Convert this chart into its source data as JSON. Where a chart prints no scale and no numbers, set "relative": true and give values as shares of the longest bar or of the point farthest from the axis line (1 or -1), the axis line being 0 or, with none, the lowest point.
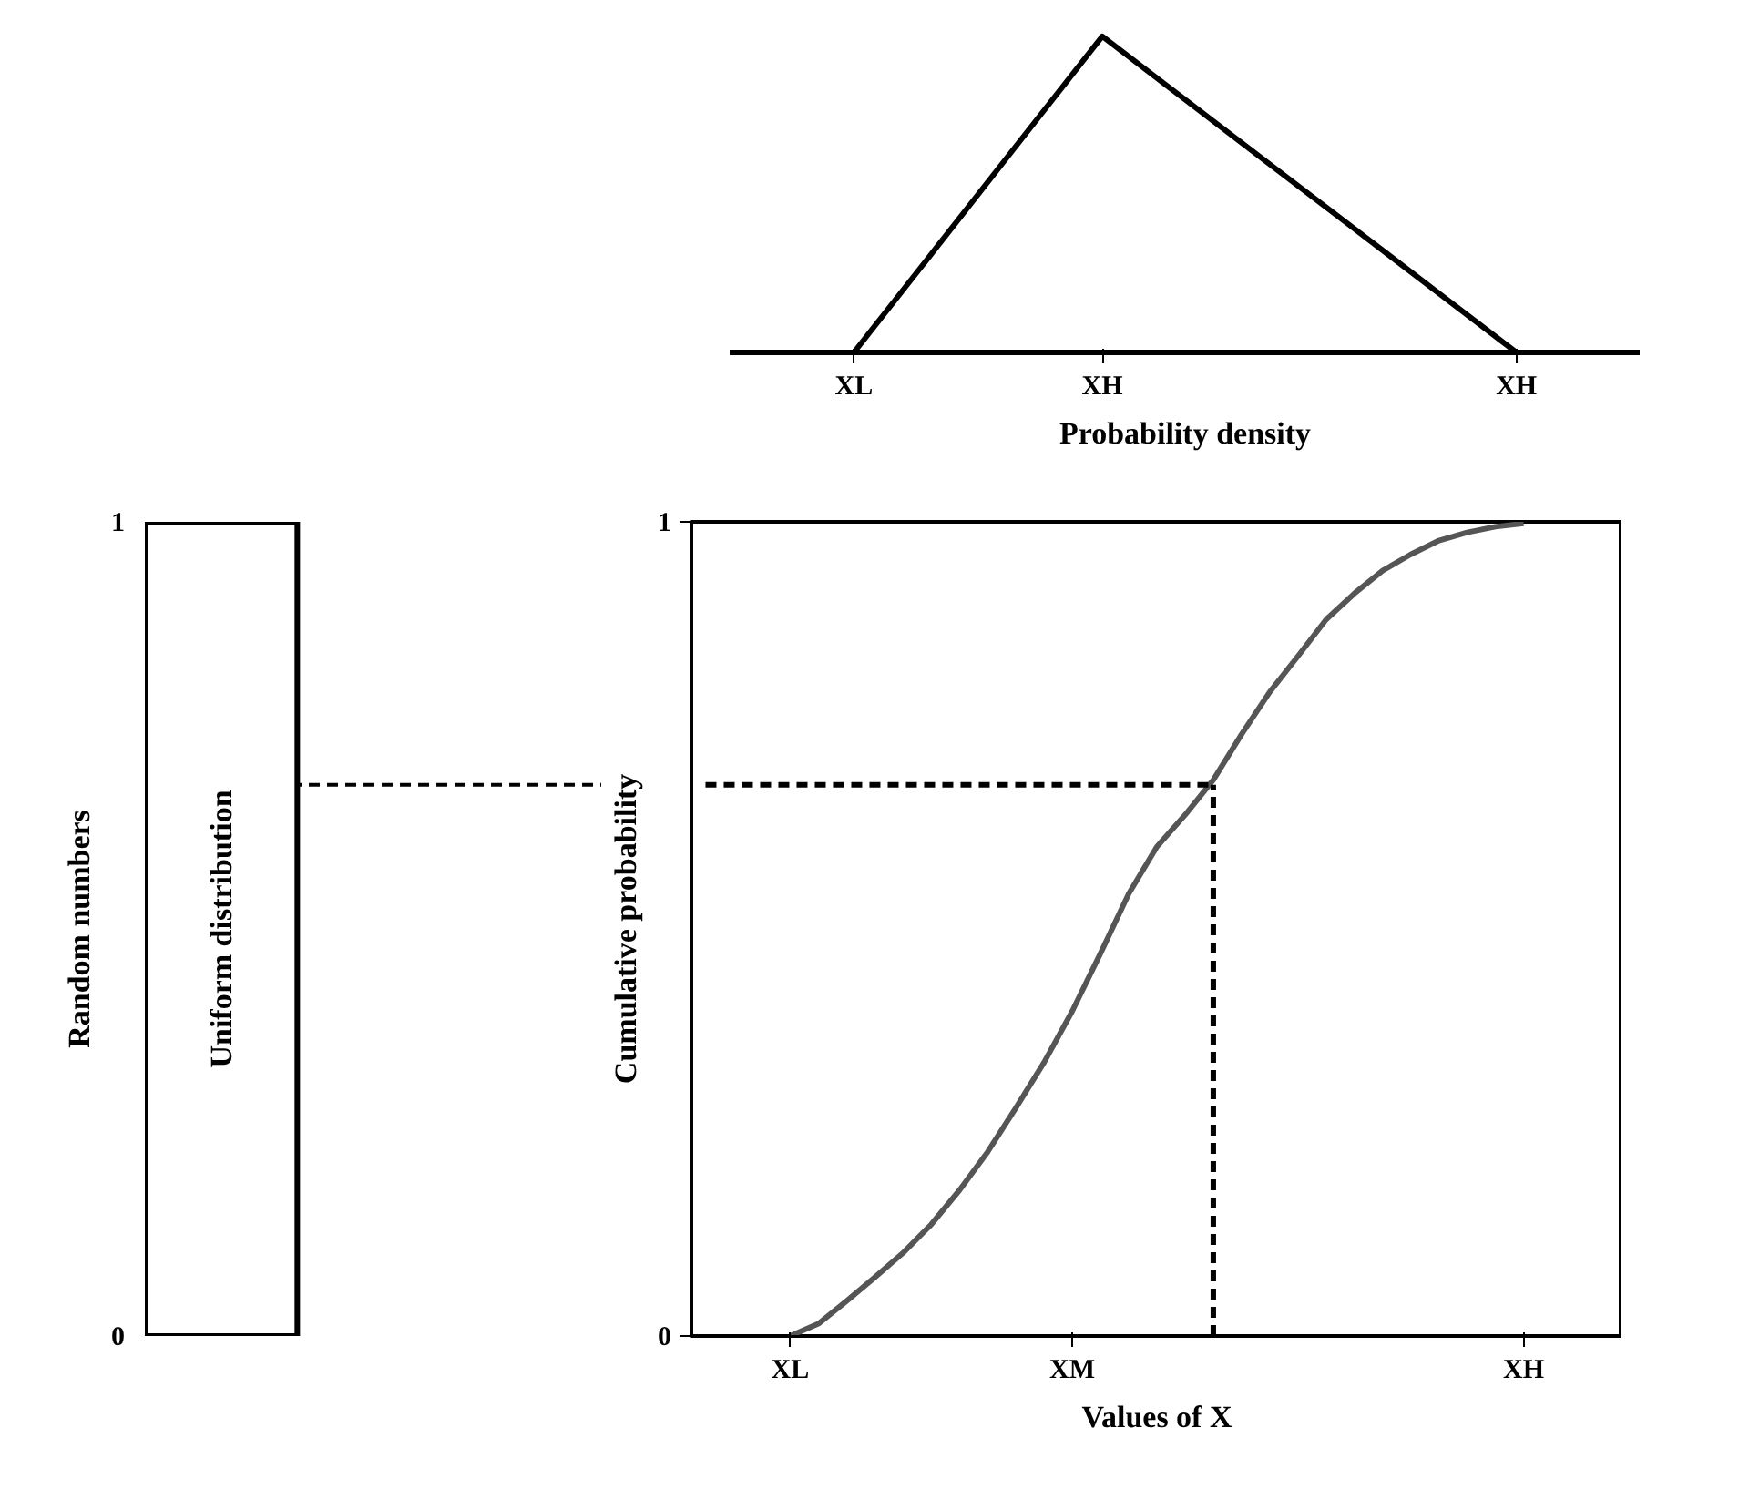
{
  "chart_data": [
    {
      "type": "line",
      "relative": true,
      "categories": [
        null,
        "XL",
        null,
        null,
        "XH",
        null,
        null,
        null,
        null,
        "XH",
        null
      ],
      "values": [
        null,
        0,
        0.333,
        0.667,
        1,
        0.8,
        0.6,
        0.4,
        0.2,
        0,
        null
      ],
      "color": "#000000",
      "xlabel": "Probability density"
    },
    {
      "type": "bar",
      "categories": [
        null
      ],
      "values": [
        1
      ],
      "color": "#ffffff",
      "ylim": [
        0,
        1
      ],
      "yticks": [
        0,
        1
      ],
      "ylabel": "Random numbers",
      "annotations": [
        "Uniform distribution"
      ],
      "ref_lines": [
        {
          "axis": "y",
          "value": 0.677,
          "line_style": "dashed",
          "color": "#000000"
        }
      ]
    },
    {
      "type": "line",
      "categories": [
        null,
        null,
        null,
        "XL",
        null,
        null,
        null,
        null,
        null,
        null,
        null,
        null,
        null,
        "XM",
        null,
        null,
        null,
        null,
        null,
        null,
        null,
        null,
        null,
        null,
        null,
        null,
        null,
        null,
        null,
        "XH",
        null,
        null,
        null
      ],
      "ylim": [
        0,
        1
      ],
      "yticks": [
        0,
        1
      ],
      "xlabel": "Values of X",
      "ylabel": "Cumulative probability",
      "series": [
        {
          "color": "#555555",
          "values": [
            null,
            null,
            null,
            0,
            0.015,
            0.043,
            0.072,
            0.102,
            0.137,
            0.179,
            0.226,
            0.28,
            0.336,
            0.399,
            0.47,
            0.543,
            0.601,
            0.64,
            0.683,
            0.739,
            0.791,
            0.835,
            0.88,
            0.912,
            0.94,
            0.96,
            0.977,
            0.987,
            0.994,
            0.998,
            null,
            null,
            null
          ]
        },
        {
          "color": "#000000",
          "line_style": "dashed",
          "values": [
            0.677,
            0.677,
            0.677,
            0.677,
            0.677,
            0.677,
            0.677,
            0.677,
            0.677,
            0.677,
            0.677,
            0.677,
            0.677,
            0.677,
            0.677,
            0.677,
            0.677,
            0.677,
            0.677,
            null,
            null,
            null,
            null,
            null,
            null,
            null,
            null,
            null,
            null,
            null,
            null,
            null,
            null
          ],
          "errors": [
            null,
            null,
            null,
            null,
            null,
            null,
            null,
            null,
            null,
            null,
            null,
            null,
            null,
            null,
            null,
            null,
            null,
            null,
            [
              0,
              0.677
            ],
            null,
            null,
            null,
            null,
            null,
            null,
            null,
            null,
            null,
            null,
            null,
            null,
            null,
            null
          ]
        }
      ]
    }
  ]
}
